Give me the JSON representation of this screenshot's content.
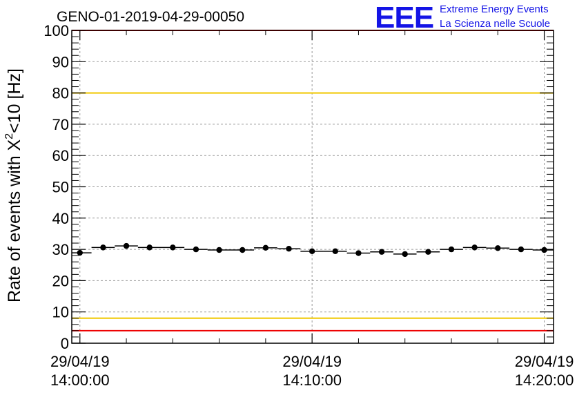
{
  "chart_data": {
    "type": "scatter",
    "title": "GENO-01-2019-04-29-00050",
    "ylabel_main": "Rate of events with X",
    "ylabel_sup": "2",
    "ylabel_tail": "<10 [Hz]",
    "xlabel": "",
    "ylim": [
      0,
      100
    ],
    "yticks": [
      0,
      10,
      20,
      30,
      40,
      50,
      60,
      70,
      80,
      90,
      100
    ],
    "xlim": [
      "29/04/19 13:59:39",
      "29/04/19 14:20:24"
    ],
    "xticks": [
      {
        "date": "29/04/19",
        "time": "14:00:00"
      },
      {
        "date": "29/04/19",
        "time": "14:10:00"
      },
      {
        "date": "29/04/19",
        "time": "14:20:00"
      }
    ],
    "grid": true,
    "reference_lines": [
      {
        "y": 100,
        "color": "#ee0000"
      },
      {
        "y": 80,
        "color": "#f0c800"
      },
      {
        "y": 8,
        "color": "#f0c800"
      },
      {
        "y": 4,
        "color": "#ee0000"
      }
    ],
    "series": [
      {
        "marker_color": "#000000",
        "points": [
          {
            "x": "14:00:00",
            "y": 28.9
          },
          {
            "x": "14:01:00",
            "y": 30.6
          },
          {
            "x": "14:02:00",
            "y": 31.1
          },
          {
            "x": "14:03:00",
            "y": 30.6
          },
          {
            "x": "14:04:00",
            "y": 30.6
          },
          {
            "x": "14:05:00",
            "y": 30.0
          },
          {
            "x": "14:06:00",
            "y": 29.8
          },
          {
            "x": "14:07:00",
            "y": 29.8
          },
          {
            "x": "14:08:00",
            "y": 30.5
          },
          {
            "x": "14:09:00",
            "y": 30.2
          },
          {
            "x": "14:10:00",
            "y": 29.4
          },
          {
            "x": "14:11:00",
            "y": 29.4
          },
          {
            "x": "14:12:00",
            "y": 28.8
          },
          {
            "x": "14:13:00",
            "y": 29.2
          },
          {
            "x": "14:14:00",
            "y": 28.5
          },
          {
            "x": "14:15:00",
            "y": 29.2
          },
          {
            "x": "14:16:00",
            "y": 30.0
          },
          {
            "x": "14:17:00",
            "y": 30.6
          },
          {
            "x": "14:18:00",
            "y": 30.4
          },
          {
            "x": "14:19:00",
            "y": 30.0
          },
          {
            "x": "14:20:00",
            "y": 29.8
          }
        ]
      }
    ]
  },
  "logo": {
    "mark": "EEE",
    "line1": "Extreme Energy Events",
    "line2": "La Scienza nelle Scuole",
    "color": "#1414e6"
  }
}
